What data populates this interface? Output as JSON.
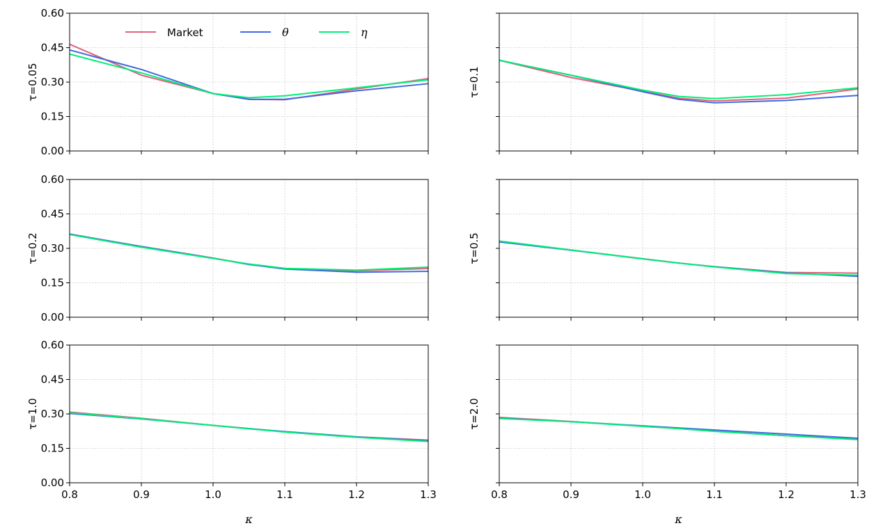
{
  "chart_data": {
    "type": "line",
    "x_ticks": [
      "0.8",
      "0.9",
      "1.0",
      "1.1",
      "1.2",
      "1.3"
    ],
    "y_ticks": [
      "0.00",
      "0.15",
      "0.30",
      "0.45",
      "0.60"
    ],
    "xlim": [
      0.8,
      1.3
    ],
    "ylim": [
      0.0,
      0.6
    ],
    "xlabel": "κ",
    "grid": true,
    "legend": {
      "placement": "top, first panel",
      "entries": [
        {
          "label": "Market",
          "color": "#e0607e"
        },
        {
          "label": "θ",
          "color": "#4169e1"
        },
        {
          "label": "η",
          "color": "#00ee76"
        }
      ]
    },
    "x": [
      0.8,
      0.9,
      1.0,
      1.05,
      1.1,
      1.2,
      1.3
    ],
    "panels": [
      {
        "label": "τ=0.05",
        "series": [
          {
            "name": "Market",
            "values": [
              0.465,
              0.33,
              0.25,
              0.225,
              0.223,
              0.27,
              0.315
            ]
          },
          {
            "name": "θ",
            "values": [
              0.44,
              0.355,
              0.25,
              0.225,
              0.225,
              0.262,
              0.293
            ]
          },
          {
            "name": "η",
            "values": [
              0.422,
              0.34,
              0.25,
              0.232,
              0.24,
              0.275,
              0.31
            ]
          }
        ]
      },
      {
        "label": "τ=0.1",
        "series": [
          {
            "name": "Market",
            "values": [
              0.395,
              0.32,
              0.26,
              0.23,
              0.218,
              0.23,
              0.27
            ]
          },
          {
            "name": "θ",
            "values": [
              0.395,
              0.33,
              0.258,
              0.225,
              0.21,
              0.22,
              0.242
            ]
          },
          {
            "name": "η",
            "values": [
              0.395,
              0.33,
              0.265,
              0.238,
              0.228,
              0.245,
              0.275
            ]
          }
        ]
      },
      {
        "label": "τ=0.2",
        "series": [
          {
            "name": "Market",
            "values": [
              0.362,
              0.308,
              0.258,
              0.23,
              0.212,
              0.202,
              0.212
            ]
          },
          {
            "name": "θ",
            "values": [
              0.362,
              0.308,
              0.257,
              0.23,
              0.21,
              0.196,
              0.2
            ]
          },
          {
            "name": "η",
            "values": [
              0.36,
              0.305,
              0.256,
              0.232,
              0.213,
              0.205,
              0.218
            ]
          }
        ]
      },
      {
        "label": "τ=0.5",
        "series": [
          {
            "name": "Market",
            "values": [
              0.33,
              0.293,
              0.255,
              0.236,
              0.22,
              0.195,
              0.192
            ]
          },
          {
            "name": "θ",
            "values": [
              0.328,
              0.292,
              0.254,
              0.236,
              0.22,
              0.193,
              0.178
            ]
          },
          {
            "name": "η",
            "values": [
              0.332,
              0.293,
              0.254,
              0.236,
              0.219,
              0.19,
              0.183
            ]
          }
        ]
      },
      {
        "label": "τ=1.0",
        "series": [
          {
            "name": "Market",
            "values": [
              0.308,
              0.281,
              0.25,
              0.236,
              0.222,
              0.2,
              0.186
            ]
          },
          {
            "name": "θ",
            "values": [
              0.302,
              0.278,
              0.25,
              0.236,
              0.223,
              0.2,
              0.183
            ]
          },
          {
            "name": "η",
            "values": [
              0.305,
              0.279,
              0.25,
              0.235,
              0.221,
              0.198,
              0.18
            ]
          }
        ]
      },
      {
        "label": "τ=2.0",
        "series": [
          {
            "name": "Market",
            "values": [
              0.285,
              0.267,
              0.246,
              0.236,
              0.225,
              0.205,
              0.19
            ]
          },
          {
            "name": "θ",
            "values": [
              0.282,
              0.266,
              0.248,
              0.239,
              0.23,
              0.212,
              0.194
            ]
          },
          {
            "name": "η",
            "values": [
              0.28,
              0.266,
              0.246,
              0.236,
              0.224,
              0.205,
              0.188
            ]
          }
        ]
      }
    ]
  }
}
